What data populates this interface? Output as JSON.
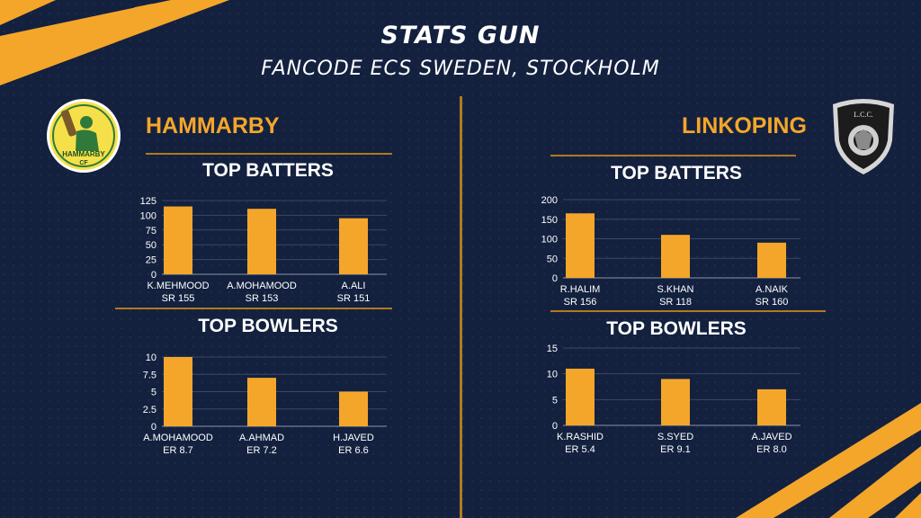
{
  "header": {
    "title": "STATS GUN",
    "subtitle": "FANCODE ECS SWEDEN, STOCKHOLM"
  },
  "teams": [
    {
      "name": "HAMMARBY",
      "logo_text": "HAMMARBY",
      "logo_sub": "CF",
      "logo_icon": "cricket-batter-icon"
    },
    {
      "name": "LINKOPING",
      "logo_text": "L.C.C.",
      "logo_icon": "lion-shield-icon"
    }
  ],
  "colors": {
    "background": "#13213f",
    "accent": "#f4a62a",
    "rule": "#b07a1c",
    "text": "#ffffff"
  },
  "chart_data": [
    {
      "type": "bar",
      "team": "HAMMARBY",
      "title": "TOP BATTERS",
      "categories": [
        "K.MEHMOOD",
        "A.MOHAMOOD",
        "A.ALI"
      ],
      "sublabels": [
        "SR 155",
        "SR 153",
        "SR 151"
      ],
      "values": [
        115,
        111,
        95
      ],
      "ylim": [
        0,
        125
      ],
      "ticks": [
        "0",
        "25",
        "50",
        "75",
        "100",
        "125"
      ],
      "tick_values": [
        0,
        25,
        50,
        75,
        100,
        125
      ],
      "grid": true
    },
    {
      "type": "bar",
      "team": "HAMMARBY",
      "title": "TOP BOWLERS",
      "categories": [
        "A.MOHAMOOD",
        "A.AHMAD",
        "H.JAVED"
      ],
      "sublabels": [
        "ER 8.7",
        "ER 7.2",
        "ER 6.6"
      ],
      "values": [
        10,
        7,
        5
      ],
      "ylim": [
        0,
        10
      ],
      "ticks": [
        "0",
        "2.5",
        "5",
        "7.5",
        "10"
      ],
      "tick_values": [
        0,
        2.5,
        5,
        7.5,
        10
      ],
      "grid": true
    },
    {
      "type": "bar",
      "team": "LINKOPING",
      "title": "TOP BATTERS",
      "categories": [
        "R.HALIM",
        "S.KHAN",
        "A.NAIK"
      ],
      "sublabels": [
        "SR 156",
        "SR 118",
        "SR 160"
      ],
      "values": [
        165,
        110,
        90
      ],
      "ylim": [
        0,
        200
      ],
      "ticks": [
        "0",
        "50",
        "100",
        "150",
        "200"
      ],
      "tick_values": [
        0,
        50,
        100,
        150,
        200
      ],
      "grid": true
    },
    {
      "type": "bar",
      "team": "LINKOPING",
      "title": "TOP BOWLERS",
      "categories": [
        "K.RASHID",
        "S.SYED",
        "A.JAVED"
      ],
      "sublabels": [
        "ER 5.4",
        "ER 9.1",
        "ER 8.0"
      ],
      "values": [
        11,
        9,
        7
      ],
      "ylim": [
        0,
        15
      ],
      "ticks": [
        "0",
        "5",
        "10",
        "15"
      ],
      "tick_values": [
        0,
        5,
        10,
        15
      ],
      "grid": true
    }
  ]
}
